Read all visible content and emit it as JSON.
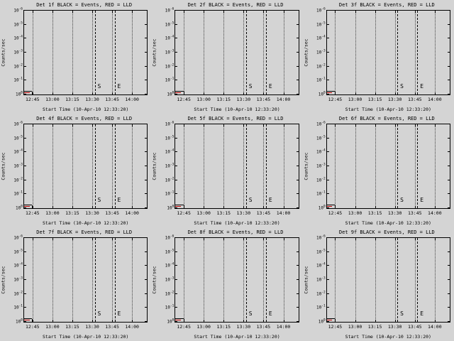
{
  "window": {
    "background": "#d4d4d4"
  },
  "axes": {
    "ylabel": "Counts/sec",
    "xlabel": "Start Time (10-Apr-10 12:33:20)",
    "xticks": [
      "12:45",
      "13:00",
      "13:15",
      "13:30",
      "13:45",
      "14:00"
    ],
    "ytick_exponents": [
      "0",
      "-1",
      "-2",
      "-3",
      "-4",
      "-5",
      "-6"
    ],
    "marker_start": "S",
    "marker_end": "E"
  },
  "panels": [
    {
      "title": "Det 1f BLACK = Events, RED = LLD"
    },
    {
      "title": "Det 2f BLACK = Events, RED = LLD"
    },
    {
      "title": "Det 3f BLACK = Events, RED = LLD"
    },
    {
      "title": "Det 4f BLACK = Events, RED = LLD"
    },
    {
      "title": "Det 5f BLACK = Events, RED = LLD"
    },
    {
      "title": "Det 6f BLACK = Events, RED = LLD"
    },
    {
      "title": "Det 7f BLACK = Events, RED = LLD"
    },
    {
      "title": "Det 8f BLACK = Events, RED = LLD"
    },
    {
      "title": "Det 9f BLACK = Events, RED = LLD"
    }
  ],
  "chart_data": {
    "type": "line",
    "layout": "3x3 grid of identical log-scale time-series panels, dotted vertical gridlines at each x tick, legend position none",
    "titles": [
      "Det 1f BLACK = Events, RED = LLD",
      "Det 2f BLACK = Events, RED = LLD",
      "Det 3f BLACK = Events, RED = LLD",
      "Det 4f BLACK = Events, RED = LLD",
      "Det 5f BLACK = Events, RED = LLD",
      "Det 6f BLACK = Events, RED = LLD",
      "Det 7f BLACK = Events, RED = LLD",
      "Det 8f BLACK = Events, RED = LLD",
      "Det 9f BLACK = Events, RED = LLD"
    ],
    "xlabel": "Start Time (10-Apr-10 12:33:20)",
    "ylabel": "Counts/sec",
    "xticks": [
      "12:45",
      "13:00",
      "13:15",
      "13:30",
      "13:45",
      "14:00"
    ],
    "yticks": [
      "10^0",
      "10^-1",
      "10^-2",
      "10^-3",
      "10^-4",
      "10^-5",
      "10^-6"
    ],
    "series": [
      {
        "name": "Events",
        "color": "#000000",
        "visible_points": "short flat segment at lower-left edge of each panel, otherwise no data plotted"
      },
      {
        "name": "LLD",
        "color": "#bb0000",
        "visible_points": "short flat segment at lower-left edge of each panel, otherwise no data plotted"
      }
    ],
    "annotations": [
      {
        "label": "S",
        "x": "~13:33",
        "style": "dashed vertical line, label near bottom"
      },
      {
        "label": "E",
        "x": "~13:47",
        "style": "dashed vertical line, label near bottom"
      }
    ]
  }
}
